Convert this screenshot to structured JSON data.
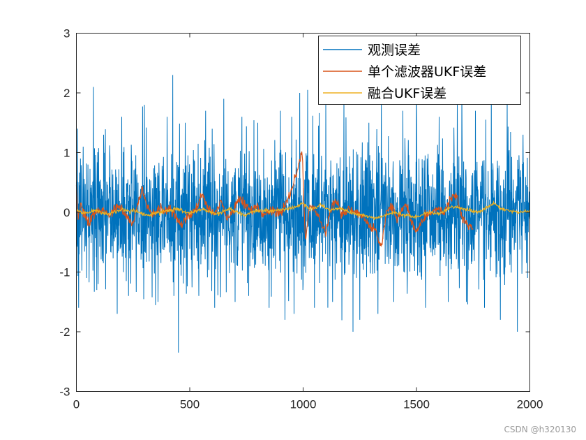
{
  "chart_data": {
    "type": "line",
    "title": "",
    "xlabel": "",
    "ylabel": "",
    "xlim": [
      0,
      2000
    ],
    "ylim": [
      -3,
      3
    ],
    "xticks": [
      0,
      500,
      1000,
      1500,
      2000
    ],
    "yticks": [
      -3,
      -2,
      -1,
      0,
      1,
      2,
      3
    ],
    "grid": false,
    "legend_position": "top-right",
    "series": [
      {
        "name": "观测误差",
        "color": "#0072BD",
        "noise_std": 0.55,
        "peaks": [
          [
            0,
            -1.0
          ],
          [
            5,
            1.4
          ],
          [
            10,
            -1.6
          ],
          [
            18,
            0.9
          ],
          [
            30,
            1.1
          ],
          [
            45,
            -1.1
          ],
          [
            75,
            2.1
          ],
          [
            90,
            -1.3
          ],
          [
            120,
            1.3
          ],
          [
            180,
            -1.7
          ],
          [
            200,
            1.6
          ],
          [
            230,
            -1.4
          ],
          [
            300,
            1.8
          ],
          [
            360,
            -1.5
          ],
          [
            400,
            1.6
          ],
          [
            425,
            2.3
          ],
          [
            430,
            -1.4
          ],
          [
            450,
            -2.35
          ],
          [
            480,
            1.5
          ],
          [
            540,
            -1.4
          ],
          [
            570,
            1.7
          ],
          [
            610,
            -1.6
          ],
          [
            650,
            1.9
          ],
          [
            700,
            -1.5
          ],
          [
            730,
            1.6
          ],
          [
            760,
            -1.4
          ],
          [
            800,
            1.5
          ],
          [
            850,
            -1.6
          ],
          [
            900,
            1.7
          ],
          [
            920,
            -1.8
          ],
          [
            950,
            1.6
          ],
          [
            960,
            -1.7
          ],
          [
            985,
            2.0
          ],
          [
            1000,
            -1.2
          ],
          [
            1020,
            2.05
          ],
          [
            1050,
            -1.6
          ],
          [
            1100,
            1.8
          ],
          [
            1130,
            -1.5
          ],
          [
            1180,
            1.9
          ],
          [
            1220,
            -2.0
          ],
          [
            1250,
            -1.8
          ],
          [
            1290,
            1.5
          ],
          [
            1330,
            -1.7
          ],
          [
            1345,
            1.9
          ],
          [
            1400,
            -1.5
          ],
          [
            1440,
            1.7
          ],
          [
            1500,
            2.0
          ],
          [
            1540,
            -1.6
          ],
          [
            1600,
            1.6
          ],
          [
            1640,
            -1.5
          ],
          [
            1680,
            1.8
          ],
          [
            1700,
            2.0
          ],
          [
            1720,
            -1.5
          ],
          [
            1760,
            1.7
          ],
          [
            1800,
            -1.6
          ],
          [
            1830,
            2.1
          ],
          [
            1870,
            -1.8
          ],
          [
            1900,
            1.9
          ],
          [
            1945,
            -2.0
          ],
          [
            1970,
            1.3
          ],
          [
            1990,
            -1.1
          ]
        ]
      },
      {
        "name": "单个滤波器UKF误差",
        "color": "#D95319",
        "x_range": [
          0,
          1750
        ],
        "keypoints": [
          [
            0,
            0.4
          ],
          [
            8,
            -0.05
          ],
          [
            20,
            0.15
          ],
          [
            40,
            -0.1
          ],
          [
            60,
            -0.2
          ],
          [
            80,
            0.0
          ],
          [
            120,
            0.05
          ],
          [
            150,
            -0.05
          ],
          [
            185,
            0.1
          ],
          [
            210,
            -0.02
          ],
          [
            250,
            -0.2
          ],
          [
            275,
            0.2
          ],
          [
            290,
            0.4
          ],
          [
            310,
            0.1
          ],
          [
            335,
            -0.05
          ],
          [
            370,
            0.1
          ],
          [
            400,
            0.05
          ],
          [
            430,
            0.02
          ],
          [
            460,
            -0.2
          ],
          [
            490,
            -0.1
          ],
          [
            520,
            0.0
          ],
          [
            555,
            0.3
          ],
          [
            585,
            0.05
          ],
          [
            610,
            -0.05
          ],
          [
            640,
            0.2
          ],
          [
            660,
            -0.1
          ],
          [
            690,
            0.0
          ],
          [
            720,
            0.25
          ],
          [
            760,
            0.05
          ],
          [
            800,
            0.1
          ],
          [
            820,
            -0.05
          ],
          [
            860,
            0.05
          ],
          [
            900,
            -0.05
          ],
          [
            940,
            0.3
          ],
          [
            970,
            0.65
          ],
          [
            995,
            1.05
          ],
          [
            1010,
            -0.45
          ],
          [
            1030,
            0.1
          ],
          [
            1050,
            0.05
          ],
          [
            1070,
            -0.1
          ],
          [
            1100,
            -0.35
          ],
          [
            1120,
            0.05
          ],
          [
            1145,
            0.2
          ],
          [
            1170,
            -0.05
          ],
          [
            1200,
            0.05
          ],
          [
            1230,
            0.0
          ],
          [
            1260,
            -0.05
          ],
          [
            1290,
            -0.2
          ],
          [
            1320,
            -0.3
          ],
          [
            1345,
            -0.6
          ],
          [
            1370,
            0.05
          ],
          [
            1390,
            0.1
          ],
          [
            1420,
            -0.1
          ],
          [
            1450,
            0.15
          ],
          [
            1480,
            -0.2
          ],
          [
            1500,
            -0.35
          ],
          [
            1520,
            -0.15
          ],
          [
            1550,
            -0.05
          ],
          [
            1590,
            0.05
          ],
          [
            1620,
            0.0
          ],
          [
            1655,
            0.25
          ],
          [
            1680,
            0.3
          ],
          [
            1700,
            -0.1
          ],
          [
            1720,
            -0.2
          ],
          [
            1750,
            -0.3
          ]
        ]
      },
      {
        "name": "融合UKF误差",
        "color": "#EDB120",
        "keypoints": [
          [
            0,
            0.05
          ],
          [
            30,
            -0.02
          ],
          [
            80,
            0.03
          ],
          [
            140,
            -0.03
          ],
          [
            200,
            0.05
          ],
          [
            260,
            0.02
          ],
          [
            320,
            -0.05
          ],
          [
            380,
            0.02
          ],
          [
            440,
            0.05
          ],
          [
            500,
            -0.02
          ],
          [
            560,
            0.05
          ],
          [
            620,
            -0.03
          ],
          [
            680,
            0.06
          ],
          [
            740,
            -0.05
          ],
          [
            800,
            0.04
          ],
          [
            860,
            0.02
          ],
          [
            920,
            0.05
          ],
          [
            960,
            0.08
          ],
          [
            1000,
            0.15
          ],
          [
            1030,
            0.05
          ],
          [
            1080,
            0.12
          ],
          [
            1120,
            0.03
          ],
          [
            1160,
            0.08
          ],
          [
            1200,
            0.0
          ],
          [
            1260,
            -0.05
          ],
          [
            1320,
            -0.1
          ],
          [
            1360,
            -0.05
          ],
          [
            1400,
            0.0
          ],
          [
            1450,
            -0.05
          ],
          [
            1500,
            -0.08
          ],
          [
            1550,
            0.0
          ],
          [
            1600,
            -0.03
          ],
          [
            1660,
            0.1
          ],
          [
            1720,
            0.05
          ],
          [
            1780,
            0.0
          ],
          [
            1840,
            0.15
          ],
          [
            1880,
            0.05
          ],
          [
            1940,
            0.0
          ],
          [
            2000,
            0.02
          ]
        ]
      }
    ]
  },
  "watermark": "CSDN @h320130"
}
